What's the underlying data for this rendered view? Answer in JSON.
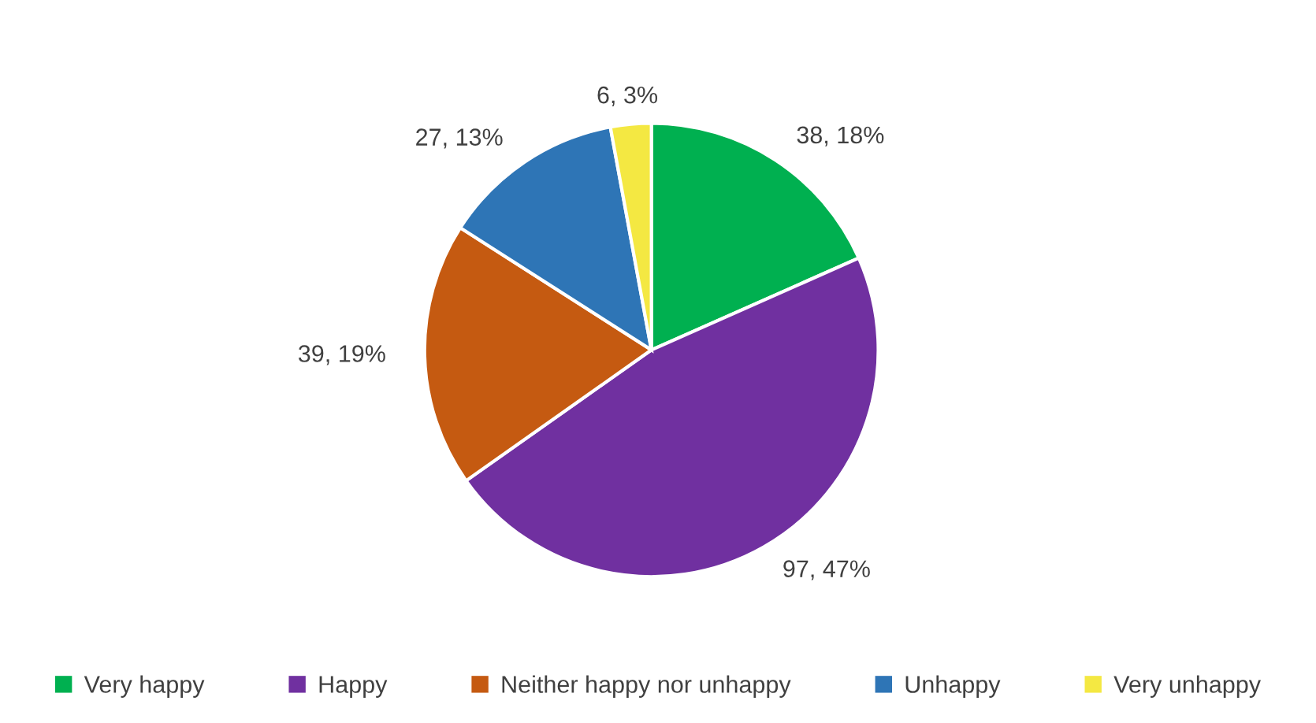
{
  "chart_data": {
    "type": "pie",
    "categories": [
      "Very happy",
      "Happy",
      "Neither happy nor unhappy",
      "Unhappy",
      "Very unhappy"
    ],
    "values": [
      38,
      97,
      39,
      27,
      6
    ],
    "colors": [
      "#00b050",
      "#7030a0",
      "#c55a11",
      "#2e75b6",
      "#f4e842"
    ],
    "value_labels": [
      "38, 18%",
      "97, 47%",
      "39, 19%",
      "27, 13%",
      "6, 3%"
    ],
    "legend": "bottom"
  }
}
